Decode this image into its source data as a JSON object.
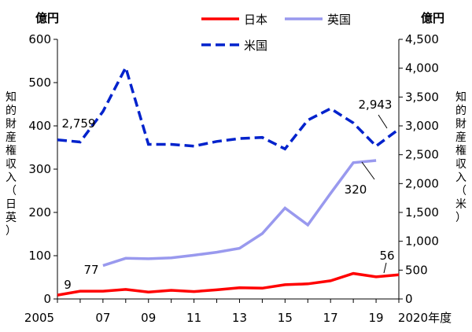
{
  "chart_data": {
    "type": "line",
    "x": [
      2005,
      2006,
      2007,
      2008,
      2009,
      2010,
      2011,
      2012,
      2013,
      2014,
      2015,
      2016,
      2017,
      2018,
      2019,
      2020
    ],
    "x_tick_labels": [
      "2005",
      "07",
      "09",
      "11",
      "13",
      "15",
      "17",
      "19",
      "2020年度"
    ],
    "left_unit": "億円",
    "right_unit": "億円",
    "ylabel_left": "知的財産権収入（日英）",
    "ylabel_right": "知的財産権収入（米）",
    "ylim_left": [
      0,
      600
    ],
    "ylim_right": [
      0,
      4500
    ],
    "left_ticks": [
      "0",
      "100",
      "200",
      "300",
      "400",
      "500",
      "600"
    ],
    "right_ticks": [
      "0",
      "500",
      "1,000",
      "1,500",
      "2,000",
      "2,500",
      "3,000",
      "3,500",
      "4,000",
      "4,500"
    ],
    "series": [
      {
        "name": "日本",
        "axis": "left",
        "color": "#ff0000",
        "style": "solid",
        "values": [
          9,
          18,
          18,
          22,
          16,
          20,
          17,
          21,
          26,
          25,
          33,
          35,
          42,
          59,
          51,
          56
        ]
      },
      {
        "name": "英国",
        "axis": "left",
        "color": "#9999ee",
        "style": "solid",
        "values": [
          null,
          null,
          77,
          94,
          93,
          95,
          101,
          108,
          117,
          151,
          210,
          171,
          244,
          315,
          320,
          null
        ]
      },
      {
        "name": "米国",
        "axis": "right",
        "color": "#0022cc",
        "style": "dashed",
        "values": [
          2759,
          2720,
          3250,
          4010,
          2680,
          2680,
          2650,
          2730,
          2780,
          2800,
          2600,
          3100,
          3300,
          3050,
          2650,
          2943
        ]
      }
    ],
    "annotations": [
      {
        "text": "9"
      },
      {
        "text": "77"
      },
      {
        "text": "2,759"
      },
      {
        "text": "2,943"
      },
      {
        "text": "320"
      },
      {
        "text": "56"
      }
    ],
    "legend": {
      "position": "top",
      "items": [
        "日本",
        "英国",
        "米国"
      ]
    }
  }
}
